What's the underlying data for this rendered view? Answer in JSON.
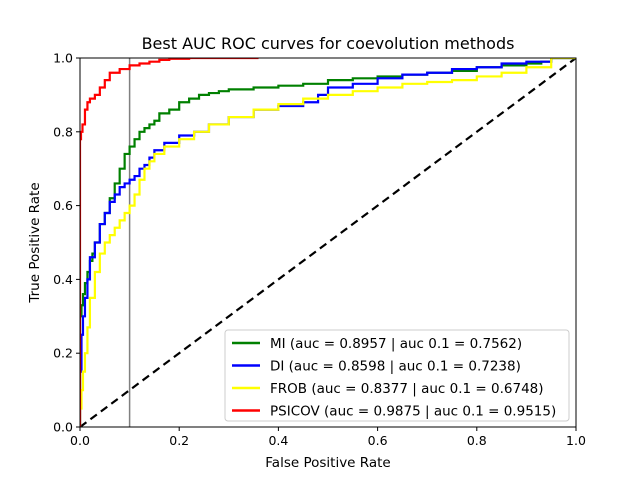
{
  "chart_data": {
    "type": "line",
    "title": "Best AUC ROC curves for coevolution methods",
    "xlabel": "False Positive Rate",
    "ylabel": "True Positive Rate",
    "xlim": [
      0.0,
      1.0
    ],
    "ylim": [
      0.0,
      1.0
    ],
    "x_ticks": [
      "0.0",
      "0.2",
      "0.4",
      "0.6",
      "0.8",
      "1.0"
    ],
    "y_ticks": [
      "0.0",
      "0.2",
      "0.4",
      "0.6",
      "0.8",
      "1.0"
    ],
    "grid": false,
    "legend_position": "lower-right",
    "reference_vline_x": 0.1,
    "diagonal": {
      "x": [
        0,
        1
      ],
      "y": [
        0,
        1
      ],
      "style": "dashed",
      "color": "#000000"
    },
    "series": [
      {
        "name": "MI (auc = 0.8957 | auc 0.1 = 0.7562)",
        "color": "#008000",
        "x": [
          0,
          0,
          0.003,
          0.006,
          0.01,
          0.015,
          0.02,
          0.025,
          0.03,
          0.04,
          0.05,
          0.06,
          0.07,
          0.08,
          0.09,
          0.1,
          0.11,
          0.12,
          0.13,
          0.14,
          0.15,
          0.16,
          0.18,
          0.2,
          0.22,
          0.24,
          0.26,
          0.28,
          0.3,
          0.35,
          0.4,
          0.45,
          0.5,
          0.55,
          0.6,
          0.65,
          0.7,
          0.75,
          0.8,
          0.85,
          0.9,
          0.93,
          0.95,
          0.97,
          1.0
        ],
        "y": [
          0,
          0.25,
          0.3,
          0.33,
          0.36,
          0.39,
          0.42,
          0.45,
          0.47,
          0.5,
          0.55,
          0.58,
          0.62,
          0.66,
          0.7,
          0.74,
          0.76,
          0.78,
          0.8,
          0.81,
          0.82,
          0.83,
          0.85,
          0.86,
          0.88,
          0.89,
          0.9,
          0.905,
          0.91,
          0.915,
          0.92,
          0.925,
          0.93,
          0.94,
          0.945,
          0.95,
          0.955,
          0.96,
          0.965,
          0.975,
          0.98,
          0.985,
          0.99,
          1.0,
          1.0
        ]
      },
      {
        "name": "DI (auc = 0.8598 | auc 0.1 = 0.7238)",
        "color": "#0000ff",
        "x": [
          0,
          0,
          0.003,
          0.006,
          0.01,
          0.015,
          0.02,
          0.03,
          0.04,
          0.05,
          0.06,
          0.07,
          0.08,
          0.09,
          0.1,
          0.11,
          0.12,
          0.13,
          0.14,
          0.15,
          0.17,
          0.2,
          0.23,
          0.26,
          0.3,
          0.35,
          0.4,
          0.45,
          0.48,
          0.5,
          0.55,
          0.6,
          0.65,
          0.7,
          0.75,
          0.8,
          0.85,
          0.9,
          0.95,
          0.97,
          1.0
        ],
        "y": [
          0,
          0.05,
          0.15,
          0.25,
          0.3,
          0.35,
          0.4,
          0.46,
          0.5,
          0.55,
          0.58,
          0.61,
          0.63,
          0.65,
          0.66,
          0.67,
          0.68,
          0.7,
          0.71,
          0.73,
          0.75,
          0.77,
          0.79,
          0.8,
          0.82,
          0.84,
          0.86,
          0.87,
          0.88,
          0.9,
          0.92,
          0.93,
          0.945,
          0.955,
          0.96,
          0.97,
          0.975,
          0.985,
          0.99,
          1.0,
          1.0
        ]
      },
      {
        "name": "FROB (auc = 0.8377 | auc 0.1 = 0.6748)",
        "color": "#ffff00",
        "x": [
          0,
          0.003,
          0.006,
          0.01,
          0.015,
          0.02,
          0.03,
          0.04,
          0.05,
          0.06,
          0.07,
          0.08,
          0.09,
          0.1,
          0.11,
          0.12,
          0.13,
          0.14,
          0.15,
          0.17,
          0.2,
          0.23,
          0.26,
          0.3,
          0.35,
          0.4,
          0.45,
          0.5,
          0.55,
          0.6,
          0.65,
          0.7,
          0.75,
          0.8,
          0.85,
          0.9,
          0.95,
          0.97,
          1.0
        ],
        "y": [
          0,
          0.05,
          0.1,
          0.15,
          0.2,
          0.27,
          0.35,
          0.42,
          0.47,
          0.5,
          0.52,
          0.54,
          0.56,
          0.58,
          0.6,
          0.63,
          0.67,
          0.7,
          0.72,
          0.74,
          0.76,
          0.78,
          0.8,
          0.82,
          0.84,
          0.86,
          0.875,
          0.89,
          0.9,
          0.91,
          0.92,
          0.93,
          0.935,
          0.94,
          0.95,
          0.96,
          0.975,
          1.0,
          1.0
        ]
      },
      {
        "name": "PSICOV (auc = 0.9875 | auc 0.1 = 0.9515)",
        "color": "#ff0000",
        "x": [
          0,
          0,
          0.002,
          0.005,
          0.01,
          0.015,
          0.02,
          0.03,
          0.04,
          0.05,
          0.06,
          0.08,
          0.1,
          0.12,
          0.14,
          0.16,
          0.18,
          0.22,
          0.26,
          0.3,
          0.36
        ],
        "y": [
          0,
          0.7,
          0.78,
          0.8,
          0.82,
          0.86,
          0.88,
          0.89,
          0.9,
          0.92,
          0.94,
          0.96,
          0.97,
          0.98,
          0.985,
          0.99,
          0.995,
          0.998,
          1.0,
          1.0,
          1.0
        ]
      }
    ]
  }
}
